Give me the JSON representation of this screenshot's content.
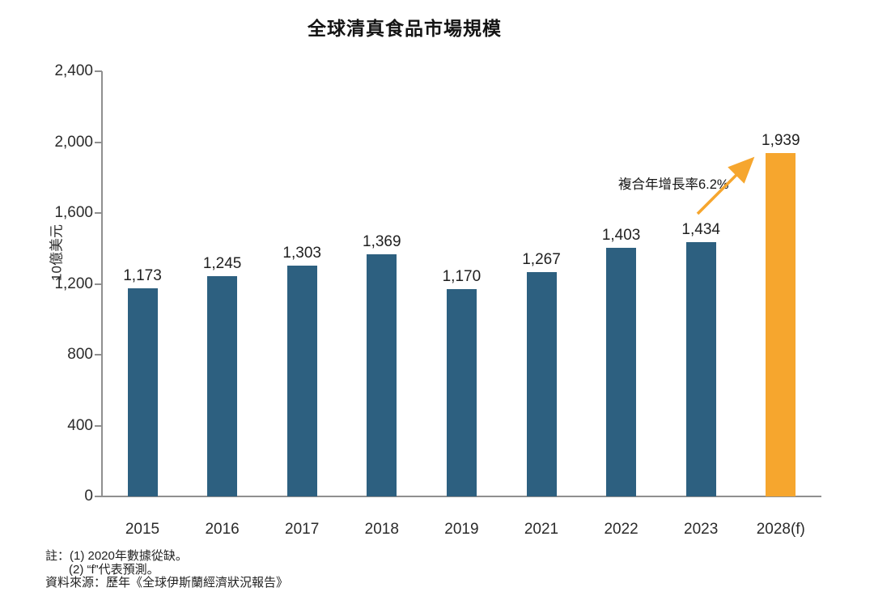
{
  "chart_data": {
    "type": "bar",
    "title": "全球清真食品市場規模",
    "ylabel": "10億美元",
    "categories": [
      "2015",
      "2016",
      "2017",
      "2018",
      "2019",
      "2021",
      "2022",
      "2023",
      "2028(f)"
    ],
    "values": [
      1173,
      1245,
      1303,
      1369,
      1170,
      1267,
      1403,
      1434,
      1939
    ],
    "value_labels": [
      "1,173",
      "1,245",
      "1,303",
      "1,369",
      "1,170",
      "1,267",
      "1,403",
      "1,434",
      "1,939"
    ],
    "ylim": [
      0,
      2400
    ],
    "yticks": [
      0,
      400,
      800,
      1200,
      1600,
      2000,
      2400
    ],
    "ytick_labels": [
      "0",
      "400",
      "800",
      "1,200",
      "1,600",
      "2,000",
      "2,400"
    ],
    "grid": "off",
    "legend": "none",
    "bar_color": "#2d6080",
    "highlight_color": "#f6a62e",
    "highlight_index": 8,
    "annotation": "複合年增長率6.2%"
  },
  "footnotes": {
    "line1": "註：(1) 2020年數據從缺。",
    "line2": "(2) “f”代表預測。",
    "line3": "資料來源：歷年《全球伊斯蘭經濟狀況報告》"
  }
}
